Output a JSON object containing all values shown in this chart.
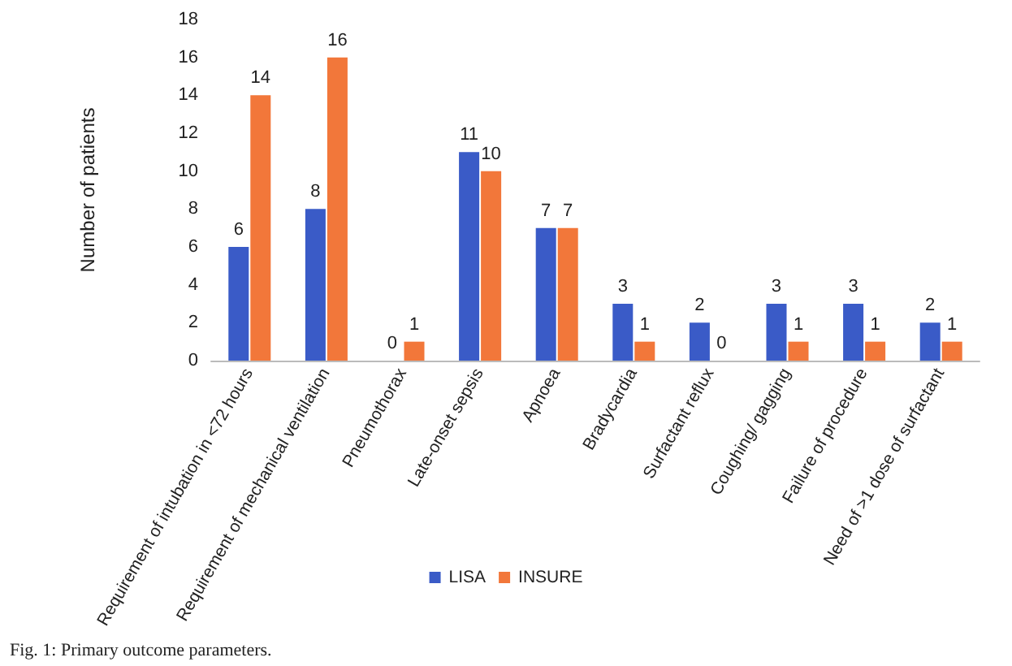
{
  "chart_data": {
    "type": "bar",
    "ylabel": "Number of patients",
    "categories": [
      "Requirement of intubation in <72 hours",
      "Requirement of mechanical ventilation",
      "Pneumothorax",
      "Late-onset sepsis",
      "Apnoea",
      "Bradycardia",
      "Surfactant reflux",
      "Coughing/ gagging",
      "Failure of procedure",
      "Need of >1 dose of surfactant"
    ],
    "series": [
      {
        "name": "LISA",
        "color": "#3a5bc7",
        "values": [
          6,
          8,
          0,
          11,
          7,
          3,
          2,
          3,
          3,
          2
        ]
      },
      {
        "name": "INSURE",
        "color": "#f2773a",
        "values": [
          14,
          16,
          1,
          10,
          7,
          1,
          0,
          1,
          1,
          1
        ]
      }
    ],
    "ylim": [
      0,
      18
    ],
    "yticks": [
      0,
      2,
      4,
      6,
      8,
      10,
      12,
      14,
      16,
      18
    ],
    "grid": false,
    "legend": "bottom",
    "data_labels": true,
    "annotations": [
      "Fig. 1: Primary outcome parameters."
    ]
  }
}
